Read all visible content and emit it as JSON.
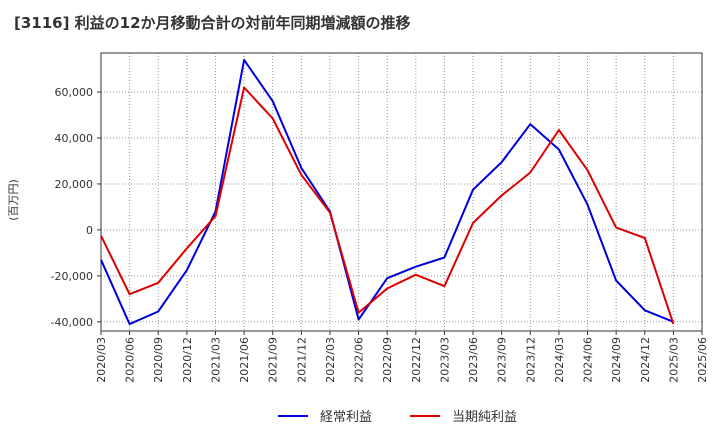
{
  "chart_data": {
    "type": "line",
    "title": "[3116]  利益の12か月移動合計の対前年同期増減額の推移",
    "xlabel": "",
    "ylabel": "(百万円)",
    "categories": [
      "2020/03",
      "2020/06",
      "2020/09",
      "2020/12",
      "2021/03",
      "2021/06",
      "2021/09",
      "2021/12",
      "2022/03",
      "2022/06",
      "2022/09",
      "2022/12",
      "2023/03",
      "2023/06",
      "2023/09",
      "2023/12",
      "2024/03",
      "2024/06",
      "2024/09",
      "2024/12",
      "2025/03",
      "2025/06"
    ],
    "y_ticks": [
      -40000,
      -20000,
      0,
      20000,
      40000,
      60000
    ],
    "y_tick_labels": [
      "-40,000",
      "-20,000",
      "0",
      "20,000",
      "40,000",
      "60,000"
    ],
    "ylim": [
      -44000,
      77000
    ],
    "grid": true,
    "legend_position": "bottom",
    "series": [
      {
        "name": "経常利益",
        "color": "#0000dd",
        "values": [
          -13000,
          -41000,
          -35500,
          -17500,
          8000,
          74000,
          56000,
          27000,
          8000,
          -39000,
          -21000,
          -16000,
          -12000,
          17500,
          29500,
          46000,
          35000,
          11000,
          -22000,
          -35000,
          -40000,
          null
        ]
      },
      {
        "name": "当期純利益",
        "color": "#dd0000",
        "values": [
          -2500,
          -28000,
          -23000,
          -8000,
          6000,
          62000,
          48500,
          24000,
          7500,
          -36000,
          -25500,
          -19500,
          -24500,
          3000,
          15000,
          25000,
          43500,
          26000,
          1000,
          -3500,
          -41000,
          null
        ]
      }
    ]
  }
}
